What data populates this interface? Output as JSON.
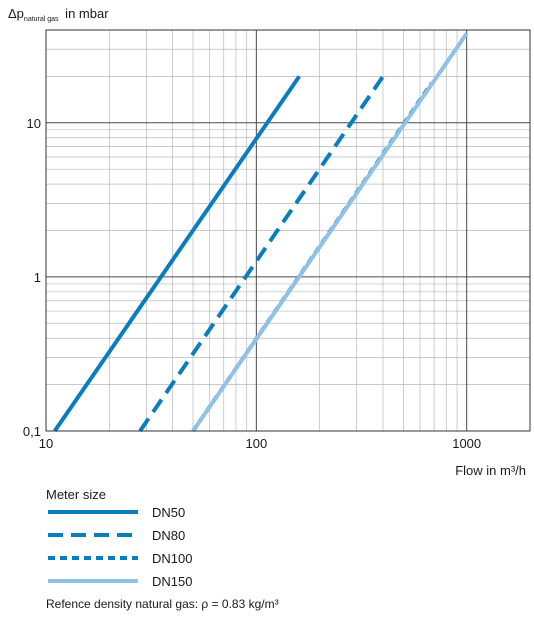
{
  "chart_data": {
    "type": "line",
    "ylabel": {
      "prefix": "Δp",
      "subscript": "natural gas",
      "suffix": " in mbar"
    },
    "xlabel": "Flow in m³/h",
    "xscale": "log",
    "yscale": "log",
    "xlim": [
      10,
      2000
    ],
    "ylim": [
      0.1,
      40
    ],
    "x_ticks": [
      {
        "value": 10,
        "label": "10"
      },
      {
        "value": 100,
        "label": "100"
      },
      {
        "value": 1000,
        "label": "1000"
      }
    ],
    "y_ticks": [
      {
        "value": 0.1,
        "label": "0,1"
      },
      {
        "value": 1,
        "label": "1"
      },
      {
        "value": 10,
        "label": "10"
      }
    ],
    "grid": true,
    "legend_title": "Meter size",
    "legend_position": "bottom",
    "series": [
      {
        "name": "DN50",
        "style": "solid",
        "color": "#0a7dbf",
        "x": [
          11,
          160
        ],
        "y": [
          0.1,
          20
        ]
      },
      {
        "name": "DN80",
        "style": "dashed",
        "color": "#0a7dbf",
        "x": [
          28,
          410
        ],
        "y": [
          0.1,
          21
        ]
      },
      {
        "name": "DN100",
        "style": "dotted",
        "color": "#0a7dbf",
        "x": [
          50,
          680
        ],
        "y": [
          0.1,
          18
        ]
      },
      {
        "name": "DN150",
        "style": "solid",
        "color": "#8fc2e6",
        "x": [
          50,
          1000
        ],
        "y": [
          0.1,
          38
        ]
      }
    ],
    "note": "Refence density natural gas: ρ = 0.83 kg/m³"
  }
}
